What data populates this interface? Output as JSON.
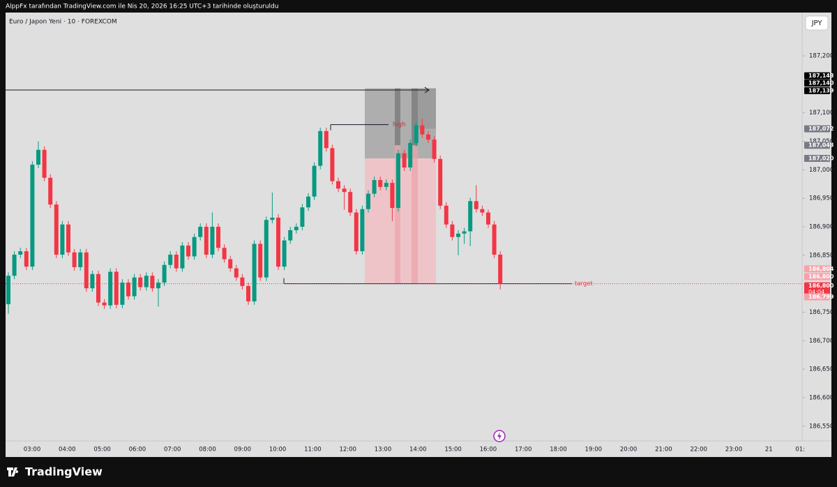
{
  "header": {
    "caption": "AlppFx tarafından TradingView.com ile Nis 20, 2026 16:25 UTC+3 tarihinde oluşturuldu",
    "symbol": "Euro / Japon Yeni · 10 · FOREXCOM",
    "currency_button": "JPY",
    "brand": "TradingView"
  },
  "chart_data": {
    "type": "candlestick",
    "open": [
      186.764,
      186.814,
      186.851,
      186.857,
      186.83,
      187.009,
      187.035,
      186.986,
      186.939,
      186.851,
      186.904,
      186.855,
      186.829,
      186.855,
      186.792,
      186.817,
      186.767,
      186.762,
      186.821,
      186.763,
      186.802,
      186.778,
      186.811,
      186.794,
      186.814,
      186.792,
      186.802,
      186.833,
      186.851,
      186.827,
      186.867,
      186.848,
      186.882,
      186.9,
      186.851,
      186.9,
      186.863,
      186.843,
      186.827,
      186.811,
      186.796,
      186.769,
      186.87,
      186.811,
      186.912,
      186.916,
      186.83,
      186.876,
      186.894,
      186.9,
      186.934,
      186.953,
      187.007,
      187.068,
      187.038,
      186.98,
      186.967,
      186.961,
      186.925,
      186.857,
      186.931,
      186.958,
      186.982,
      186.97,
      186.977,
      186.933,
      187.029,
      187.004,
      187.047,
      187.078,
      187.062,
      187.053,
      187.019,
      186.937,
      186.904,
      186.882,
      186.888,
      186.892,
      186.945,
      186.931,
      186.925,
      186.904,
      186.851
    ],
    "high": [
      186.82,
      186.857,
      186.863,
      186.863,
      187.015,
      187.05,
      187.041,
      186.992,
      186.945,
      186.91,
      186.91,
      186.861,
      186.861,
      186.861,
      186.823,
      186.823,
      186.773,
      186.827,
      186.827,
      186.808,
      186.808,
      186.817,
      186.817,
      186.82,
      186.82,
      186.808,
      186.839,
      186.857,
      186.857,
      186.873,
      186.873,
      186.888,
      186.906,
      186.906,
      186.925,
      186.906,
      186.869,
      186.849,
      186.833,
      186.817,
      186.802,
      186.876,
      186.876,
      186.918,
      186.96,
      186.922,
      186.882,
      186.9,
      186.906,
      186.94,
      186.959,
      187.013,
      187.074,
      187.074,
      187.044,
      186.986,
      186.973,
      186.967,
      186.931,
      186.937,
      186.964,
      186.988,
      186.988,
      186.983,
      186.983,
      187.035,
      187.035,
      187.053,
      187.084,
      187.09,
      187.068,
      187.059,
      187.025,
      186.943,
      186.91,
      186.894,
      186.898,
      186.951,
      186.973,
      186.937,
      186.93,
      186.91,
      186.857
    ],
    "low": [
      186.747,
      186.808,
      186.845,
      186.824,
      186.824,
      187.003,
      186.98,
      186.933,
      186.845,
      186.845,
      186.849,
      186.823,
      186.823,
      186.786,
      186.786,
      186.761,
      186.756,
      186.756,
      186.757,
      186.757,
      186.772,
      186.772,
      186.788,
      186.788,
      186.786,
      186.76,
      186.796,
      186.827,
      186.821,
      186.821,
      186.842,
      186.842,
      186.876,
      186.845,
      186.845,
      186.857,
      186.837,
      186.821,
      186.805,
      186.79,
      186.763,
      186.763,
      186.805,
      186.805,
      186.906,
      186.824,
      186.824,
      186.87,
      186.888,
      186.894,
      186.928,
      186.947,
      187.001,
      187.032,
      186.974,
      186.961,
      186.93,
      186.919,
      186.851,
      186.851,
      186.925,
      186.952,
      186.964,
      186.964,
      186.91,
      186.927,
      186.998,
      186.998,
      187.041,
      187.056,
      187.047,
      187.013,
      186.931,
      186.898,
      186.876,
      186.85,
      186.87,
      186.866,
      186.925,
      186.919,
      186.898,
      186.845,
      186.79
    ],
    "close": [
      186.814,
      186.851,
      186.857,
      186.83,
      187.009,
      187.035,
      186.986,
      186.939,
      186.851,
      186.904,
      186.855,
      186.829,
      186.855,
      186.792,
      186.817,
      186.767,
      186.762,
      186.821,
      186.763,
      186.802,
      186.778,
      186.811,
      186.794,
      186.814,
      186.792,
      186.802,
      186.833,
      186.851,
      186.827,
      186.867,
      186.848,
      186.882,
      186.9,
      186.851,
      186.9,
      186.863,
      186.843,
      186.827,
      186.811,
      186.796,
      186.769,
      186.87,
      186.811,
      186.912,
      186.916,
      186.83,
      186.876,
      186.894,
      186.9,
      186.934,
      186.953,
      187.007,
      187.068,
      187.038,
      186.98,
      186.967,
      186.961,
      186.925,
      186.857,
      186.931,
      186.958,
      186.982,
      186.97,
      186.977,
      186.933,
      187.029,
      187.004,
      187.047,
      187.078,
      187.062,
      187.053,
      187.019,
      186.937,
      186.904,
      186.882,
      186.888,
      186.892,
      186.945,
      186.931,
      186.925,
      186.904,
      186.851,
      186.8
    ],
    "up_color": "#089981",
    "down_color": "#f23645",
    "ylim": [
      186.524,
      187.276
    ],
    "yticks": [
      {
        "value": 187.2,
        "label": "187,200"
      },
      {
        "value": 187.1,
        "label": "187,100"
      },
      {
        "value": 187.05,
        "label": "187,050"
      },
      {
        "value": 187.0,
        "label": "187,000"
      },
      {
        "value": 186.95,
        "label": "186,950"
      },
      {
        "value": 186.9,
        "label": "186,900"
      },
      {
        "value": 186.85,
        "label": "186,850"
      },
      {
        "value": 186.75,
        "label": "186,750"
      },
      {
        "value": 186.7,
        "label": "186,700"
      },
      {
        "value": 186.65,
        "label": "186,650"
      },
      {
        "value": 186.6,
        "label": "186,600"
      },
      {
        "value": 186.55,
        "label": "186,550"
      }
    ],
    "xticks": [
      "03:00",
      "04:00",
      "05:00",
      "06:00",
      "07:00",
      "08:00",
      "09:00",
      "10:00",
      "11:00",
      "12:00",
      "13:00",
      "14:00",
      "15:00",
      "16:00",
      "17:00",
      "18:00",
      "19:00",
      "20:00",
      "21:00",
      "22:00",
      "23:00",
      "21",
      "01:00"
    ],
    "price_labels": [
      {
        "value": 187.143,
        "label": "187,143",
        "color": "#000000"
      },
      {
        "value": 187.14,
        "label": "187,140",
        "color": "#000000"
      },
      {
        "value": 187.139,
        "label": "187,139",
        "color": "#000000"
      },
      {
        "value": 187.072,
        "label": "187,072",
        "color": "#787b86"
      },
      {
        "value": 187.043,
        "label": "187,043",
        "color": "#787b86"
      },
      {
        "value": 187.02,
        "label": "187,020",
        "color": "#787b86"
      },
      {
        "value": 186.804,
        "label": "186,804",
        "color": "#f7a1a9"
      },
      {
        "value": 186.8,
        "label": "186,800",
        "color": "#f7a1a9"
      },
      {
        "value": 186.8,
        "label": "186,800",
        "color": "#f23645",
        "countdown": "04:04"
      },
      {
        "value": 186.799,
        "label": "186,799",
        "color": "#f7a1a9"
      }
    ],
    "annotations": {
      "high": "high",
      "target": "target"
    }
  }
}
